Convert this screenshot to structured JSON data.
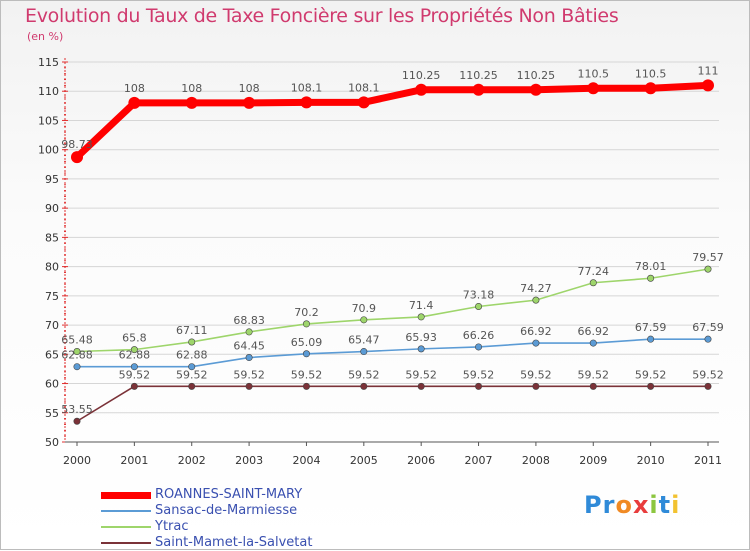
{
  "title": "Evolution du Taux de Taxe Foncière sur les Propriétés Non Bâties",
  "unit_label": "(en %)",
  "logo": {
    "text": "Proxiti",
    "letters": [
      "P",
      "r",
      "o",
      "x",
      "i",
      "t",
      "i"
    ],
    "colors": [
      "#2f8ad8",
      "#2f8ad8",
      "#f08a24",
      "#e83c3c",
      "#8cc63f",
      "#2f8ad8",
      "#f2c230"
    ]
  },
  "chart_data": {
    "type": "line",
    "title": "Evolution du Taux de Taxe Foncière sur les Propriétés Non Bâties",
    "ylabel": "(en %)",
    "xlabel": "",
    "x": [
      "2000",
      "2001",
      "2002",
      "2003",
      "2004",
      "2005",
      "2006",
      "2007",
      "2008",
      "2009",
      "2010",
      "2011"
    ],
    "ylim": [
      50,
      115
    ],
    "yticks": [
      50,
      55,
      60,
      65,
      70,
      75,
      80,
      85,
      90,
      95,
      100,
      105,
      110,
      115
    ],
    "grid": "horizontal",
    "legend_position": "bottom-left",
    "series": [
      {
        "name": "ROANNES-SAINT-MARY",
        "color": "#ff0000",
        "emphasis": true,
        "values": [
          98.73,
          108,
          108,
          108,
          108.1,
          108.1,
          110.25,
          110.25,
          110.25,
          110.5,
          110.5,
          111
        ],
        "labels": [
          "98.73",
          "108",
          "108",
          "108",
          "108.1",
          "108.1",
          "110.25",
          "110.25",
          "110.25",
          "110.5",
          "110.5",
          "111"
        ]
      },
      {
        "name": "Sansac-de-Marmiesse",
        "color": "#5b9bd5",
        "values": [
          62.88,
          62.88,
          62.88,
          64.45,
          65.09,
          65.47,
          65.93,
          66.26,
          66.92,
          66.92,
          67.59,
          67.59
        ],
        "labels": [
          "62.88",
          "62.88",
          "62.88",
          "64.45",
          "65.09",
          "65.47",
          "65.93",
          "66.26",
          "66.92",
          "66.92",
          "67.59",
          "67.59"
        ]
      },
      {
        "name": "Ytrac",
        "color": "#9ed56b",
        "values": [
          65.48,
          65.8,
          67.11,
          68.83,
          70.2,
          70.9,
          71.4,
          73.18,
          74.27,
          77.24,
          78.01,
          79.57
        ],
        "labels": [
          "65.48",
          "65.8",
          "67.11",
          "68.83",
          "70.2",
          "70.9",
          "71.4",
          "73.18",
          "74.27",
          "77.24",
          "78.01",
          "79.57"
        ]
      },
      {
        "name": "Saint-Mamet-la-Salvetat",
        "color": "#7b3238",
        "values": [
          53.55,
          59.52,
          59.52,
          59.52,
          59.52,
          59.52,
          59.52,
          59.52,
          59.52,
          59.52,
          59.52,
          59.52
        ],
        "labels": [
          "53.55",
          "59.52",
          "59.52",
          "59.52",
          "59.52",
          "59.52",
          "59.52",
          "59.52",
          "59.52",
          "59.52",
          "59.52",
          "59.52"
        ]
      }
    ]
  }
}
